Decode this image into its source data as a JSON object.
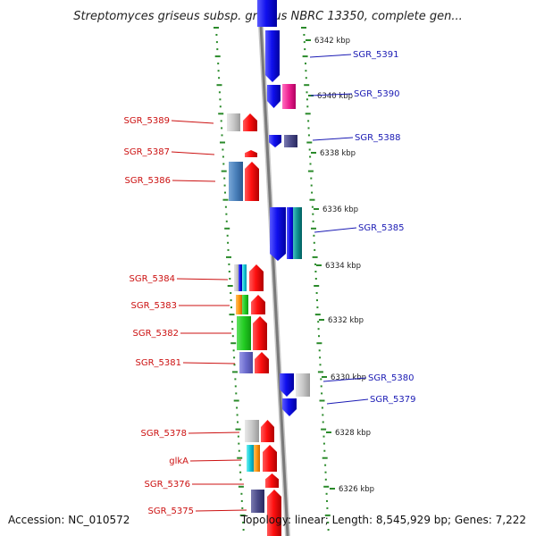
{
  "title": "Streptomyces griseus subsp. griseus NBRC 13350, complete gen...",
  "footer": {
    "accession": "Accession: NC_010572",
    "summary": "Topology: linear; Length: 8,545,929 bp; Genes: 7,222"
  },
  "ruler": [
    "6342 kbp",
    "6340 kbp",
    "6338 kbp",
    "6336 kbp",
    "6334 kbp",
    "6332 kbp",
    "6330 kbp",
    "6328 kbp",
    "6326 kbp"
  ],
  "genes_left": [
    "SGR_5389",
    "SGR_5387",
    "SGR_5386",
    "SGR_5384",
    "SGR_5383",
    "SGR_5382",
    "SGR_5381",
    "SGR_5378",
    "glkA",
    "SGR_5376",
    "SGR_5375"
  ],
  "genes_right": [
    "SGR_5391",
    "SGR_5390",
    "SGR_5388",
    "SGR_5385",
    "SGR_5380",
    "SGR_5379"
  ],
  "colors": {
    "forward_strand": "#ee0000",
    "reverse_strand": "#1010e0",
    "left_label": "#cc1111",
    "right_label": "#1a1ab4",
    "backbone": "#888888",
    "dotted_guide": "#2a8a2a"
  }
}
